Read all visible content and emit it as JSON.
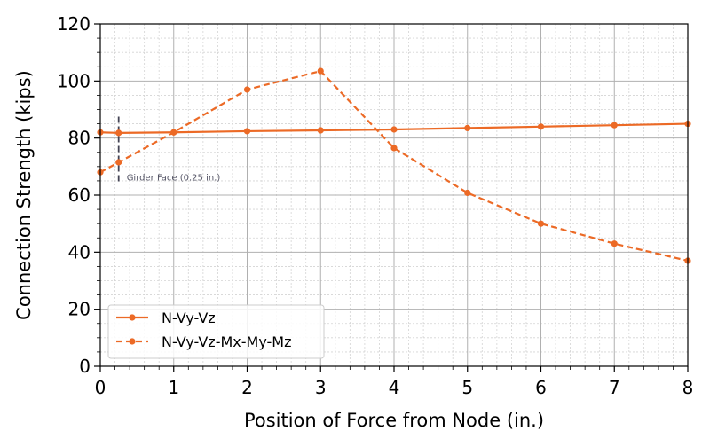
{
  "chart_data": {
    "type": "line",
    "title": "",
    "xlabel": "Position of Force from Node (in.)",
    "ylabel": "Connection Strength (kips)",
    "xlim": [
      0,
      8
    ],
    "ylim": [
      0,
      120
    ],
    "xticks": [
      0,
      1,
      2,
      3,
      4,
      5,
      6,
      7,
      8
    ],
    "yticks": [
      0,
      20,
      40,
      60,
      80,
      100,
      120
    ],
    "xtick_labels": [
      "0",
      "1",
      "2",
      "3",
      "4",
      "5",
      "6",
      "7",
      "8"
    ],
    "ytick_labels": [
      "0",
      "20",
      "40",
      "60",
      "80",
      "100",
      "120"
    ],
    "grid": true,
    "minor_grid": true,
    "legend_position": "lower-left",
    "series": [
      {
        "name": "N-Vy-Vz",
        "style": "solid",
        "color": "#ec6a26",
        "x": [
          0,
          0.25,
          1,
          2,
          3,
          4,
          5,
          6,
          7,
          8
        ],
        "y": [
          82.0,
          81.8,
          82.0,
          82.4,
          82.7,
          83.0,
          83.5,
          84.0,
          84.5,
          85.0
        ]
      },
      {
        "name": "N-Vy-Vz-Mx-My-Mz",
        "style": "dashed",
        "color": "#ec6a26",
        "x": [
          0,
          0.25,
          1,
          2,
          3,
          4,
          5,
          6,
          7,
          8
        ],
        "y": [
          68.0,
          71.5,
          82.0,
          97.0,
          103.5,
          76.5,
          60.8,
          50.0,
          43.0,
          37.0
        ]
      }
    ],
    "annotations": [
      {
        "type": "vline",
        "x": 0.25,
        "y_from": 64.5,
        "y_to": 87.5,
        "color": "#444455",
        "text": "Girder Face (0.25 in.)"
      }
    ]
  }
}
